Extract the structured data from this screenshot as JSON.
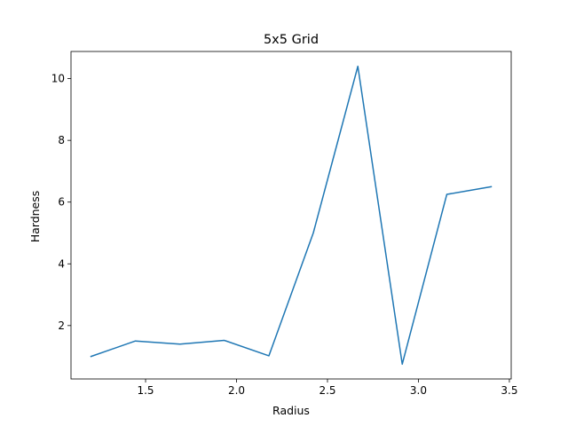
{
  "chart_data": {
    "type": "line",
    "title": "5x5 Grid",
    "xlabel": "Radius",
    "ylabel": "Hardness",
    "xlim": [
      1.09,
      3.51
    ],
    "ylim": [
      0.27,
      10.88
    ],
    "grid": false,
    "x_ticks": [
      1.5,
      2.0,
      2.5,
      3.0,
      3.5
    ],
    "x_tick_labels": [
      "1.5",
      "2.0",
      "2.5",
      "3.0",
      "3.5"
    ],
    "y_ticks": [
      2,
      4,
      6,
      8,
      10
    ],
    "y_tick_labels": [
      "2",
      "4",
      "6",
      "8",
      "10"
    ],
    "series": [
      {
        "color": "#1f77b4",
        "x": [
          1.2,
          1.444,
          1.689,
          1.933,
          2.178,
          2.422,
          2.667,
          2.911,
          3.156,
          3.4
        ],
        "y": [
          1.0,
          1.5,
          1.4,
          1.52,
          1.02,
          5.0,
          10.4,
          0.75,
          6.25,
          6.5
        ]
      }
    ]
  }
}
